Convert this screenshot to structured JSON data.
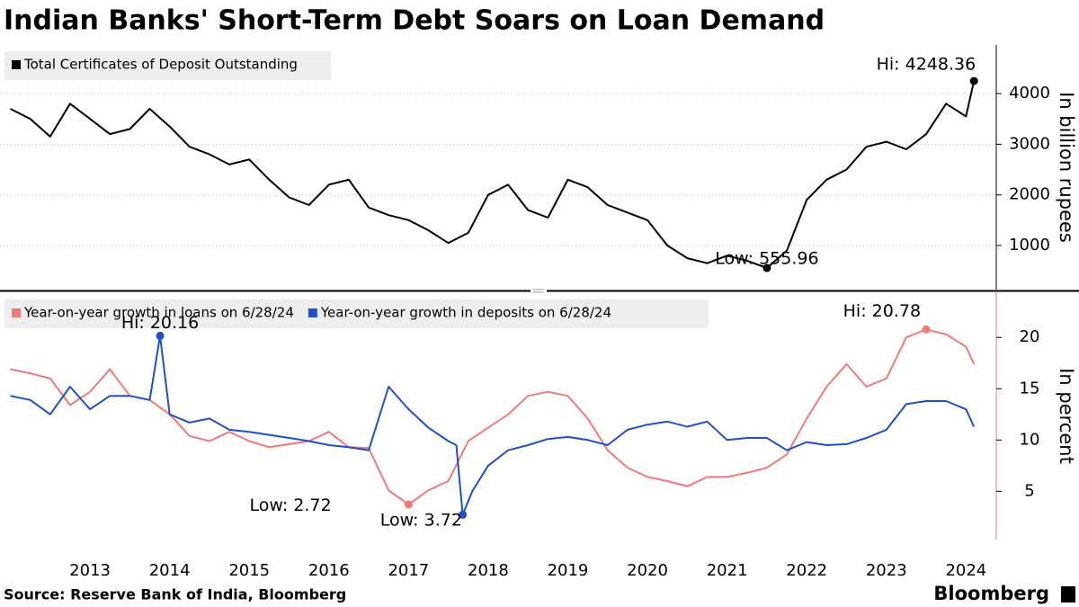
{
  "title": "Indian Banks' Short-Term Debt Soars on Loan Demand",
  "source": "Source: Reserve Bank of India, Bloomberg",
  "brand": "Bloomberg",
  "chart_data": [
    {
      "type": "line",
      "y_label": "In billion rupees",
      "xlim": [
        2012.37,
        2024.88
      ],
      "ylim": [
        130,
        4960
      ],
      "yticks": [
        1000,
        2000,
        3000,
        4000
      ],
      "grid": true,
      "series": [
        {
          "name": "Total Certificates of Deposit Outstanding",
          "color": "#000000",
          "x": [
            2012.5,
            2012.75,
            2013.0,
            2013.25,
            2013.5,
            2013.75,
            2014.0,
            2014.25,
            2014.5,
            2014.75,
            2015.0,
            2015.25,
            2015.5,
            2015.75,
            2016.0,
            2016.25,
            2016.5,
            2016.75,
            2017.0,
            2017.25,
            2017.5,
            2017.75,
            2018.0,
            2018.25,
            2018.5,
            2018.75,
            2019.0,
            2019.25,
            2019.5,
            2019.75,
            2020.0,
            2020.25,
            2020.5,
            2020.75,
            2021.0,
            2021.25,
            2021.5,
            2021.75,
            2022.0,
            2022.25,
            2022.5,
            2022.75,
            2023.0,
            2023.25,
            2023.5,
            2023.75,
            2024.0,
            2024.25,
            2024.5,
            2024.6
          ],
          "values": [
            3700,
            3500,
            3150,
            3800,
            3500,
            3200,
            3300,
            3700,
            3350,
            2950,
            2800,
            2600,
            2700,
            2300,
            1950,
            1800,
            2200,
            2300,
            1750,
            1600,
            1500,
            1300,
            1050,
            1250,
            2000,
            2200,
            1700,
            1550,
            2300,
            2150,
            1800,
            1650,
            1500,
            1000,
            750,
            650,
            800,
            700,
            555.96,
            900,
            1900,
            2300,
            2500,
            2950,
            3050,
            2900,
            3200,
            3800,
            3550,
            4248.36
          ]
        }
      ],
      "annotations": [
        {
          "text": "Hi: 4248.36",
          "x": 2024.6,
          "y": 4248.36,
          "color": "#000000"
        },
        {
          "text": "Low: 555.96",
          "x": 2022.0,
          "y": 555.96,
          "color": "#000000"
        }
      ]
    },
    {
      "type": "line",
      "y_label": "In percent",
      "xlim": [
        2012.37,
        2024.88
      ],
      "ylim": [
        0.3,
        24.4
      ],
      "yticks": [
        5,
        10,
        15,
        20
      ],
      "xticks": [
        {
          "value": 2013.5,
          "label": "2013"
        },
        {
          "value": 2014.5,
          "label": "2014"
        },
        {
          "value": 2015.5,
          "label": "2015"
        },
        {
          "value": 2016.5,
          "label": "2016"
        },
        {
          "value": 2017.5,
          "label": "2017"
        },
        {
          "value": 2018.5,
          "label": "2018"
        },
        {
          "value": 2019.5,
          "label": "2019"
        },
        {
          "value": 2020.5,
          "label": "2020"
        },
        {
          "value": 2021.5,
          "label": "2021"
        },
        {
          "value": 2022.5,
          "label": "2022"
        },
        {
          "value": 2023.5,
          "label": "2023"
        },
        {
          "value": 2024.5,
          "label": "2024"
        }
      ],
      "grid": false,
      "series": [
        {
          "name": "Year-on-year growth in loans on 6/28/24",
          "color": "#f07a78",
          "x": [
            2012.5,
            2012.75,
            2013.0,
            2013.25,
            2013.5,
            2013.75,
            2014.0,
            2014.25,
            2014.5,
            2014.75,
            2015.0,
            2015.25,
            2015.5,
            2015.75,
            2016.0,
            2016.25,
            2016.5,
            2016.75,
            2017.0,
            2017.25,
            2017.5,
            2017.75,
            2018.0,
            2018.25,
            2018.5,
            2018.75,
            2019.0,
            2019.25,
            2019.5,
            2019.75,
            2020.0,
            2020.25,
            2020.5,
            2020.75,
            2021.0,
            2021.25,
            2021.5,
            2021.75,
            2022.0,
            2022.25,
            2022.5,
            2022.75,
            2023.0,
            2023.25,
            2023.5,
            2023.75,
            2024.0,
            2024.25,
            2024.5,
            2024.6
          ],
          "values": [
            16.9,
            16.5,
            16,
            13.4,
            14.7,
            16.9,
            14.3,
            13.9,
            12.5,
            10.4,
            9.9,
            10.8,
            9.9,
            9.3,
            9.6,
            9.9,
            10.8,
            9.3,
            9.2,
            5.1,
            3.72,
            5.1,
            6.0,
            9.9,
            11.2,
            12.5,
            14.3,
            14.7,
            14.3,
            12.1,
            9,
            7.3,
            6.4,
            6,
            5.5,
            6.4,
            6.4,
            6.8,
            7.3,
            8.6,
            12.1,
            15.2,
            17.4,
            15.2,
            16,
            20,
            20.78,
            20.3,
            19.1,
            17.4
          ]
        },
        {
          "name": "Year-on-year growth in deposits on 6/28/24",
          "color": "#1f4fc9",
          "x": [
            2012.5,
            2012.75,
            2013.0,
            2013.25,
            2013.5,
            2013.75,
            2014.0,
            2014.25,
            2014.38,
            2014.5,
            2014.75,
            2015.0,
            2015.25,
            2015.5,
            2015.75,
            2016.0,
            2016.25,
            2016.5,
            2016.75,
            2017.0,
            2017.25,
            2017.5,
            2017.75,
            2018.0,
            2018.1,
            2018.18,
            2018.3,
            2018.5,
            2018.75,
            2019.0,
            2019.25,
            2019.5,
            2019.75,
            2020.0,
            2020.25,
            2020.5,
            2020.75,
            2021.0,
            2021.25,
            2021.5,
            2021.75,
            2022.0,
            2022.25,
            2022.5,
            2022.75,
            2023.0,
            2023.25,
            2023.5,
            2023.75,
            2024.0,
            2024.25,
            2024.5,
            2024.6
          ],
          "values": [
            14.3,
            13.9,
            12.5,
            15.2,
            13,
            14.3,
            14.3,
            13.9,
            20.16,
            12.5,
            11.7,
            12.1,
            11,
            10.8,
            10.5,
            10.2,
            9.9,
            9.5,
            9.3,
            9,
            15.2,
            13,
            11.2,
            9.9,
            9.5,
            2.72,
            5,
            7.5,
            9,
            9.5,
            10.1,
            10.3,
            10,
            9.5,
            11,
            11.5,
            11.8,
            11.3,
            11.8,
            10,
            10.2,
            10.2,
            9,
            9.8,
            9.5,
            9.6,
            10.2,
            11,
            13.5,
            13.8,
            13.8,
            13,
            11.3
          ]
        }
      ],
      "annotations": [
        {
          "text": "Hi: 20.16",
          "x": 2014.38,
          "y": 20.16,
          "color": "#1f4fc9"
        },
        {
          "text": "Low: 2.72",
          "x": 2018.18,
          "y": 2.72,
          "color": "#1f4fc9"
        },
        {
          "text": "Low: 3.72",
          "x": 2017.5,
          "y": 3.72,
          "color": "#f07a78"
        },
        {
          "text": "Hi: 20.78",
          "x": 2024.0,
          "y": 20.78,
          "color": "#f07a78"
        }
      ]
    }
  ]
}
